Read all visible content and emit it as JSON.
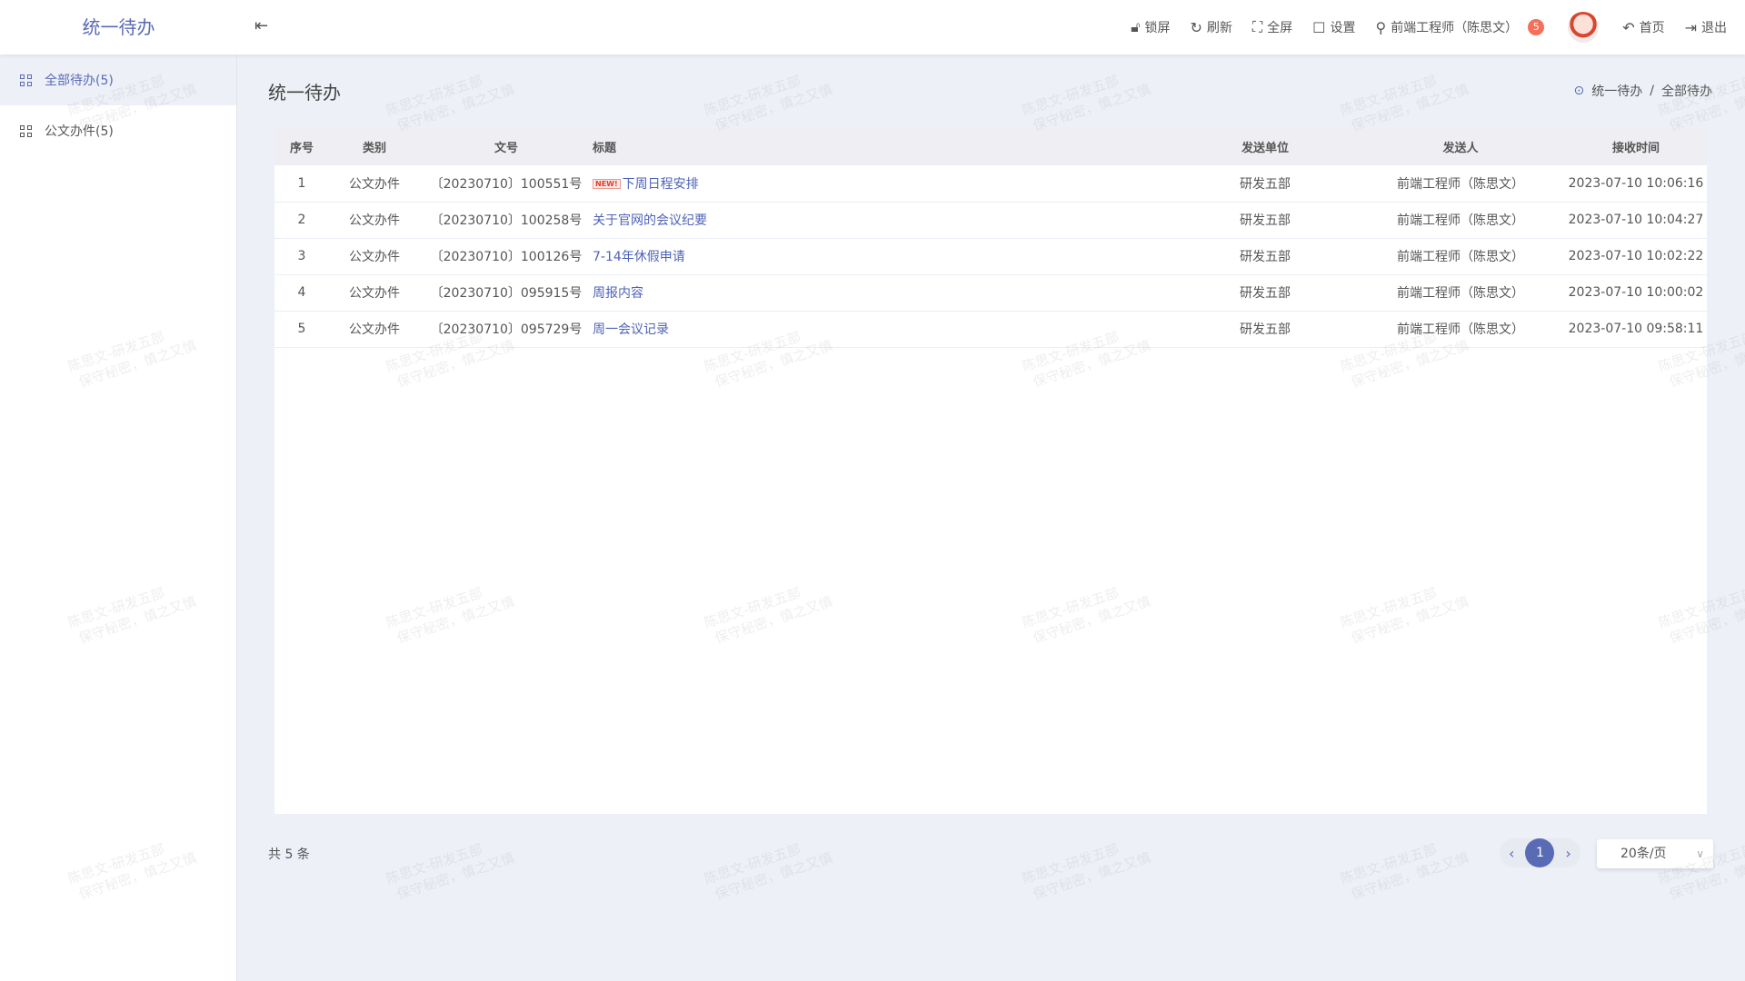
{
  "app": {
    "title": "统一待办",
    "collapse_icon": "indent-icon"
  },
  "toolbar": {
    "lock": "锁屏",
    "refresh": "刷新",
    "fullscreen": "全屏",
    "settings": "设置",
    "user": "前端工程师（陈思文）",
    "badge": "5",
    "home": "首页",
    "logout": "退出"
  },
  "sidebar": {
    "items": [
      {
        "label": "全部待办(5)",
        "active": true
      },
      {
        "label": "公文办件(5)"
      }
    ]
  },
  "page": {
    "title": "统一待办",
    "breadcrumb": [
      "统一待办",
      "全部待办"
    ],
    "separator": "/"
  },
  "table": {
    "headers": [
      "序号",
      "类别",
      "文号",
      "标题",
      "发送单位",
      "发送人",
      "接收时间"
    ],
    "rows": [
      [
        "1",
        "公文办件",
        "〔20230710〕100551号",
        "下周日程安排",
        "研发五部",
        "前端工程师（陈思文）",
        "2023-07-10 10:06:16"
      ],
      [
        "2",
        "公文办件",
        "〔20230710〕100258号",
        "关于官网的会议纪要",
        "研发五部",
        "前端工程师（陈思文）",
        "2023-07-10 10:04:27"
      ],
      [
        "3",
        "公文办件",
        "〔20230710〕100126号",
        "7-14年休假申请",
        "研发五部",
        "前端工程师（陈思文）",
        "2023-07-10 10:02:22"
      ],
      [
        "4",
        "公文办件",
        "〔20230710〕095915号",
        "周报内容",
        "研发五部",
        "前端工程师（陈思文）",
        "2023-07-10 10:00:02"
      ],
      [
        "5",
        "公文办件",
        "〔20230710〕095729号",
        "周一会议记录",
        "研发五部",
        "前端工程师（陈思文）",
        "2023-07-10 09:58:11"
      ]
    ],
    "new_tag": "NEW!"
  },
  "pagination": {
    "total": "共 5 条",
    "current": "1",
    "page_size": "20条/页"
  },
  "watermark": {
    "line1": "陈思文-研发五部",
    "line2": "保守秘密，慎之又慎"
  },
  "colors": {
    "accent": "#5a6bb5",
    "link": "#4e63b8",
    "badge": "#f4705a",
    "background": "#edf0f7"
  }
}
